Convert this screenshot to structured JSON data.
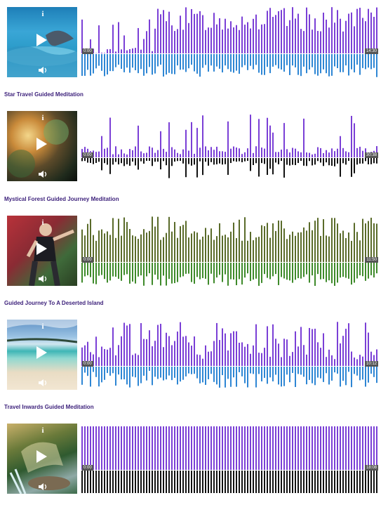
{
  "tracks": [
    {
      "title": "",
      "current_time": "0:00",
      "duration": "14:30",
      "thumb": "dolphin-ocean",
      "wave_top_color": "#7a3fd6",
      "wave_bottom_color": "#2e86d4",
      "wave_style": "dense-lower"
    },
    {
      "title": "Star Travel Guided Meditation",
      "current_time": "0:00",
      "duration": "30:38",
      "thumb": "nebula",
      "wave_top_color": "#7a3fd6",
      "wave_bottom_color": "#111111",
      "wave_style": "sparse"
    },
    {
      "title": "Mystical Forest Guided Journey Meditation",
      "current_time": "0:00",
      "duration": "11:50",
      "thumb": "man-forest",
      "wave_top_color": "#5a6b2a",
      "wave_bottom_color": "#3e8a2a",
      "wave_style": "full"
    },
    {
      "title": "Guided Journey To A Deserted Island",
      "current_time": "0:00",
      "duration": "10:12",
      "thumb": "beach",
      "wave_top_color": "#7a3fd6",
      "wave_bottom_color": "#2e86d4",
      "wave_style": "medium"
    },
    {
      "title": "Travel Inwards Guided Meditation",
      "current_time": "0:00",
      "duration": "18:08",
      "thumb": "waterfall",
      "wave_top_color": "#7a3fd6",
      "wave_bottom_color": "#111111",
      "wave_style": "solid"
    }
  ],
  "icons": {
    "play": "play-icon",
    "info": "info-icon",
    "volume": "volume-icon"
  },
  "info_glyph": "i"
}
